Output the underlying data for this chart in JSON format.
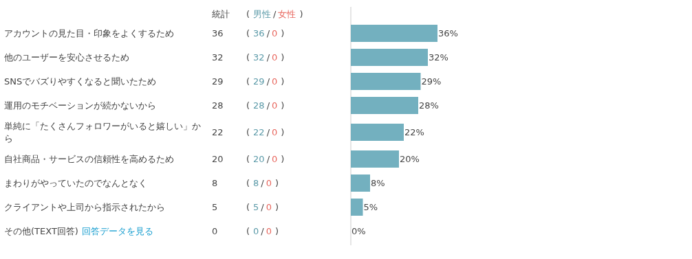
{
  "chart_data": {
    "type": "bar",
    "orientation": "horizontal",
    "tick_labels": "y",
    "categories": [
      "アカウントの見た目・印象をよくするため",
      "他のユーザーを安心させるため",
      "SNSでバズりやすくなると聞いたため",
      "運用のモチベーションが続かないから",
      "単純に「たくさんフォロワーがいると嬉しい」から",
      "自社商品・サービスの信頼性を高めるため",
      "まわりがやっていたのでなんとなく",
      "クライアントや上司から指示されたから",
      "その他(TEXT回答)"
    ],
    "series": [
      {
        "type": "bar",
        "color": "#73b0bf",
        "values": [
          36,
          32,
          29,
          28,
          22,
          20,
          8,
          5,
          0
        ],
        "value_labels": [
          "36%",
          "32%",
          "29%",
          "28%",
          "22%",
          "20%",
          "8%",
          "5%",
          "0%"
        ]
      }
    ],
    "annotations": [
      "回答データを見る",
      "(",
      "/",
      ")",
      "統計",
      "男性",
      "女性",
      "36",
      "36",
      "0",
      "32",
      "32",
      "0",
      "29",
      "29",
      "0",
      "28",
      "28",
      "0",
      "22",
      "22",
      "0",
      "20",
      "20",
      "0",
      "8",
      "8",
      "0",
      "5",
      "5",
      "0",
      "0",
      "0",
      "0"
    ]
  }
}
